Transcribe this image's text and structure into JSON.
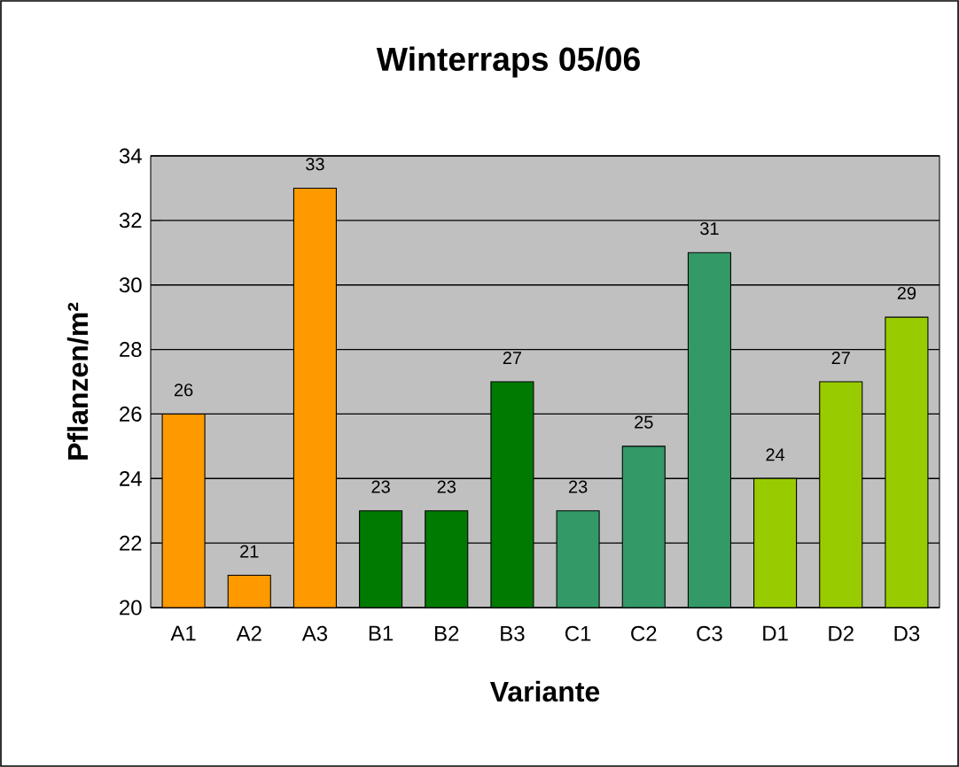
{
  "chart_data": {
    "type": "bar",
    "title": "Winterraps 05/06",
    "xlabel": "Variante",
    "ylabel": "Pflanzen/m²",
    "categories": [
      "A1",
      "A2",
      "A3",
      "B1",
      "B2",
      "B3",
      "C1",
      "C2",
      "C3",
      "D1",
      "D2",
      "D3"
    ],
    "values": [
      26,
      21,
      33,
      23,
      23,
      27,
      23,
      25,
      31,
      24,
      27,
      29
    ],
    "colors": [
      "#ff9900",
      "#ff9900",
      "#ff9900",
      "#007a00",
      "#007a00",
      "#007a00",
      "#339966",
      "#339966",
      "#339966",
      "#99cc00",
      "#99cc00",
      "#99cc00"
    ],
    "ylim": [
      20,
      34
    ],
    "yticks": [
      20,
      22,
      24,
      26,
      28,
      30,
      32,
      34
    ],
    "grid": "y",
    "data_labels": true
  }
}
